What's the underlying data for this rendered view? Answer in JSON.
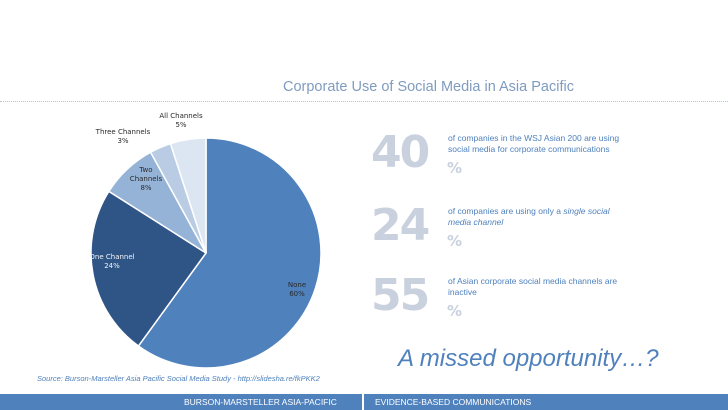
{
  "slide": {
    "title": "Corporate Use of Social Media in Asia Pacific",
    "tagline": "A missed opportunity…?",
    "source": "Source: Burson-Marsteller Asia Pacific Social Media Study - http://slidesha.re/fkPKK2"
  },
  "stats": [
    {
      "number": "40",
      "pct": "%",
      "desc": "of companies in the WSJ Asian 200 are using social media for corporate communications",
      "desc_italic": ""
    },
    {
      "number": "24",
      "pct": "%",
      "desc": "of companies are using only a ",
      "desc_italic": "single social media channel"
    },
    {
      "number": "55",
      "pct": "%",
      "desc": "of Asian corporate social media channels are inactive",
      "desc_italic": ""
    }
  ],
  "footer": {
    "left": "BURSON-MARSTELLER ASIA-PACIFIC",
    "right": "EVIDENCE-BASED COMMUNICATIONS"
  },
  "colors": {
    "accent": "#4f81bd",
    "stat_gray": "#c8d1dd",
    "title": "#7f9bbf"
  },
  "chart_data": {
    "type": "pie",
    "title": "",
    "start": "12 o'clock, clockwise",
    "slices": [
      {
        "label_lines": [
          "None",
          "60%"
        ],
        "value": 60,
        "color": "#4f81bd",
        "light": false
      },
      {
        "label_lines": [
          "One Channel",
          "24%"
        ],
        "value": 24,
        "color": "#2f5486",
        "light": true
      },
      {
        "label_lines": [
          "Two",
          "Channels",
          "8%"
        ],
        "value": 8,
        "color": "#95b3d7",
        "light": false
      },
      {
        "label_lines": [
          "Three Channels",
          "3%"
        ],
        "value": 3,
        "color": "#b9cce4",
        "light": false
      },
      {
        "label_lines": [
          "All Channels",
          "5%"
        ],
        "value": 5,
        "color": "#dce6f2",
        "light": false
      }
    ]
  }
}
